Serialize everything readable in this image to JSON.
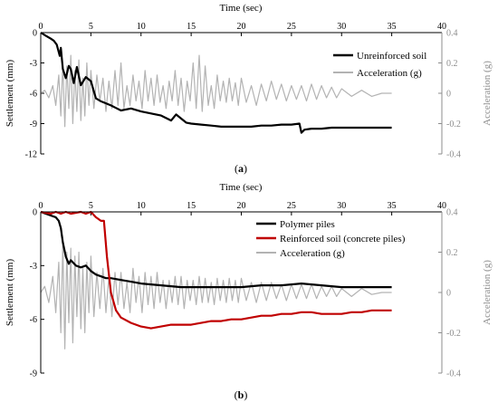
{
  "chart_data": [
    {
      "type": "line",
      "caption_open": "(",
      "caption_letter": "a",
      "caption_close": ")",
      "xlabel": "Time (sec)",
      "ylabel": "Settlement (mm)",
      "y2label": "Acceleration (g)",
      "xlim": [
        0,
        40
      ],
      "ylim": [
        -12,
        0
      ],
      "y2lim": [
        -0.4,
        0.4
      ],
      "xticks": [
        "0",
        "5",
        "10",
        "15",
        "20",
        "25",
        "30",
        "35",
        "40"
      ],
      "yticks": [
        "0",
        "-3",
        "-6",
        "-9",
        "-12"
      ],
      "y2ticks": [
        "0.4",
        "0.2",
        "0",
        "-0.2",
        "-0.4"
      ],
      "legend_position": "top-right",
      "series": [
        {
          "name": "Unreinforced soil",
          "axis": "left",
          "color": "#000000",
          "x": [
            0,
            0.5,
            1,
            1.3,
            1.6,
            1.9,
            2.0,
            2.2,
            2.5,
            2.8,
            3.0,
            3.3,
            3.6,
            4,
            4.5,
            5,
            5.5,
            6,
            7,
            8,
            9,
            10,
            11,
            12,
            13,
            13.5,
            14,
            14.5,
            15,
            16,
            17,
            18,
            19,
            20,
            21,
            22,
            23,
            24,
            25,
            25.8,
            26.0,
            26.3,
            27,
            28,
            29,
            30,
            31,
            32,
            33,
            34,
            35
          ],
          "y": [
            0,
            -0.3,
            -0.6,
            -0.8,
            -1.2,
            -2.3,
            -1.5,
            -3.6,
            -4.5,
            -3.3,
            -3.6,
            -5.0,
            -3.4,
            -5.2,
            -4.4,
            -4.8,
            -6.5,
            -6.8,
            -7.2,
            -7.7,
            -7.5,
            -7.8,
            -8.0,
            -8.2,
            -8.7,
            -8.1,
            -8.5,
            -8.9,
            -9.0,
            -9.1,
            -9.2,
            -9.3,
            -9.3,
            -9.3,
            -9.3,
            -9.2,
            -9.2,
            -9.1,
            -9.1,
            -9.0,
            -9.9,
            -9.6,
            -9.5,
            -9.5,
            -9.4,
            -9.4,
            -9.4,
            -9.4,
            -9.4,
            -9.4,
            -9.4
          ]
        },
        {
          "name": "Acceleration (g)",
          "axis": "right",
          "color": "#b3b3b3",
          "x": [
            0,
            0.4,
            0.8,
            1.2,
            1.5,
            1.8,
            2.0,
            2.2,
            2.4,
            2.6,
            2.8,
            3.0,
            3.2,
            3.4,
            3.6,
            3.8,
            4.0,
            4.2,
            4.4,
            4.6,
            4.8,
            5.0,
            5.3,
            5.6,
            5.9,
            6.2,
            6.5,
            6.8,
            7.1,
            7.4,
            7.7,
            8.0,
            8.3,
            8.6,
            8.9,
            9.2,
            9.5,
            9.8,
            10.1,
            10.4,
            10.7,
            11.0,
            11.3,
            11.6,
            11.9,
            12.2,
            12.5,
            12.8,
            13.1,
            13.4,
            13.7,
            14.0,
            14.3,
            14.6,
            14.9,
            15.2,
            15.5,
            15.8,
            16.1,
            16.4,
            16.7,
            17.0,
            17.3,
            17.6,
            17.9,
            18.2,
            18.5,
            18.8,
            19.1,
            19.4,
            19.7,
            20.0,
            20.5,
            21.0,
            21.5,
            22.0,
            22.5,
            23.0,
            23.5,
            24.0,
            24.5,
            25.0,
            25.5,
            26.0,
            26.5,
            27.0,
            27.5,
            28.0,
            28.5,
            29.0,
            29.5,
            30.0,
            31.0,
            32.0,
            33.0,
            34.0,
            35.0
          ],
          "y": [
            0.0,
            0.02,
            -0.03,
            0.05,
            -0.08,
            0.12,
            -0.15,
            0.2,
            -0.22,
            0.18,
            -0.1,
            0.25,
            -0.2,
            0.15,
            -0.12,
            0.22,
            -0.18,
            0.1,
            -0.15,
            0.2,
            -0.08,
            0.15,
            -0.1,
            0.12,
            -0.05,
            0.1,
            -0.12,
            0.08,
            -0.1,
            0.15,
            -0.08,
            0.2,
            -0.1,
            0.05,
            -0.08,
            0.12,
            -0.05,
            0.08,
            -0.1,
            0.15,
            -0.05,
            0.1,
            -0.08,
            0.12,
            -0.06,
            0.05,
            -0.1,
            0.08,
            -0.05,
            0.15,
            -0.08,
            0.1,
            -0.12,
            0.08,
            -0.05,
            0.2,
            -0.1,
            0.25,
            -0.12,
            0.18,
            -0.08,
            0.05,
            -0.1,
            0.12,
            -0.05,
            0.08,
            -0.06,
            0.1,
            -0.05,
            0.07,
            -0.08,
            0.1,
            -0.06,
            0.05,
            -0.08,
            0.06,
            -0.05,
            0.08,
            -0.04,
            0.06,
            -0.05,
            0.05,
            -0.04,
            0.05,
            -0.05,
            0.06,
            -0.04,
            0.05,
            -0.03,
            0.04,
            -0.03,
            0.03,
            -0.02,
            0.02,
            -0.02,
            0.0,
            0.0
          ]
        }
      ]
    },
    {
      "type": "line",
      "caption_open": "(",
      "caption_letter": "b",
      "caption_close": ")",
      "xlabel": "Time (sec)",
      "ylabel": "Settlement (mm)",
      "y2label": "Acceleration (g)",
      "xlim": [
        0,
        40
      ],
      "ylim": [
        -9,
        0
      ],
      "y2lim": [
        -0.4,
        0.4
      ],
      "xticks": [
        "0",
        "5",
        "10",
        "15",
        "20",
        "25",
        "30",
        "35",
        "40"
      ],
      "yticks": [
        "0",
        "-3",
        "-6",
        "-9"
      ],
      "y2ticks": [
        "0.4",
        "0.2",
        "0",
        "-0.2",
        "-0.4"
      ],
      "legend_position": "top-right",
      "series": [
        {
          "name": "Polymer piles",
          "axis": "left",
          "color": "#000000",
          "x": [
            0,
            0.5,
            1.0,
            1.5,
            1.8,
            2.0,
            2.2,
            2.5,
            2.8,
            3.0,
            3.5,
            4.0,
            4.5,
            5.0,
            5.5,
            6.0,
            6.5,
            7.0,
            8.0,
            9.0,
            10,
            12,
            14,
            16,
            18,
            20,
            22,
            24,
            26,
            28,
            30,
            32,
            34,
            35
          ],
          "y": [
            0,
            -0.1,
            -0.2,
            -0.3,
            -0.5,
            -0.9,
            -1.7,
            -2.5,
            -2.9,
            -2.7,
            -3.0,
            -3.1,
            -3.0,
            -3.3,
            -3.5,
            -3.6,
            -3.7,
            -3.7,
            -3.8,
            -3.9,
            -4.0,
            -4.1,
            -4.2,
            -4.2,
            -4.2,
            -4.2,
            -4.1,
            -4.1,
            -4.0,
            -4.1,
            -4.2,
            -4.2,
            -4.2,
            -4.2
          ]
        },
        {
          "name": "Reinforced soil (concrete piles)",
          "axis": "left",
          "color": "#c00000",
          "x": [
            0,
            0.5,
            1.0,
            1.5,
            2.0,
            2.5,
            3.0,
            3.5,
            4.0,
            4.5,
            5.0,
            5.5,
            6.0,
            6.3,
            6.6,
            7.0,
            7.5,
            8.0,
            9.0,
            10,
            11,
            12,
            13,
            14,
            15,
            16,
            17,
            18,
            19,
            20,
            21,
            22,
            23,
            24,
            25,
            26,
            27,
            28,
            29,
            30,
            31,
            32,
            33,
            34,
            35
          ],
          "y": [
            0,
            -0.05,
            -0.1,
            0,
            -0.1,
            0,
            -0.1,
            -0.05,
            0,
            -0.1,
            0,
            -0.3,
            -0.5,
            -0.5,
            -2.5,
            -4.5,
            -5.5,
            -5.9,
            -6.2,
            -6.4,
            -6.5,
            -6.4,
            -6.3,
            -6.3,
            -6.3,
            -6.2,
            -6.1,
            -6.1,
            -6.0,
            -6.0,
            -5.9,
            -5.8,
            -5.8,
            -5.7,
            -5.7,
            -5.6,
            -5.6,
            -5.7,
            -5.7,
            -5.7,
            -5.6,
            -5.6,
            -5.5,
            -5.5,
            -5.5
          ]
        },
        {
          "name": "Acceleration (g)",
          "axis": "right",
          "color": "#b3b3b3",
          "x": [
            0,
            0.4,
            0.8,
            1.2,
            1.5,
            1.8,
            2.0,
            2.2,
            2.4,
            2.6,
            2.8,
            3.0,
            3.2,
            3.4,
            3.6,
            3.8,
            4.0,
            4.2,
            4.4,
            4.6,
            4.8,
            5.0,
            5.3,
            5.6,
            5.9,
            6.2,
            6.5,
            6.8,
            7.1,
            7.4,
            7.7,
            8.0,
            8.3,
            8.6,
            8.9,
            9.2,
            9.5,
            9.8,
            10.1,
            10.4,
            10.7,
            11.0,
            11.3,
            11.6,
            11.9,
            12.2,
            12.5,
            12.8,
            13.1,
            13.4,
            13.7,
            14.0,
            14.3,
            14.6,
            14.9,
            15.2,
            15.5,
            15.8,
            16.1,
            16.4,
            16.7,
            17.0,
            17.3,
            17.6,
            17.9,
            18.2,
            18.5,
            18.8,
            19.1,
            19.4,
            19.7,
            20.0,
            20.5,
            21.0,
            21.5,
            22.0,
            22.5,
            23.0,
            23.5,
            24.0,
            24.5,
            25.0,
            25.5,
            26.0,
            26.5,
            27.0,
            27.5,
            28.0,
            28.5,
            29.0,
            29.5,
            30.0,
            31.0,
            32.0,
            33.0,
            34.0,
            35.0
          ],
          "y": [
            0.0,
            0.03,
            -0.05,
            0.08,
            -0.1,
            0.15,
            -0.2,
            0.25,
            -0.28,
            0.2,
            -0.15,
            0.22,
            -0.25,
            0.18,
            -0.12,
            0.2,
            -0.18,
            0.12,
            -0.2,
            0.15,
            -0.1,
            0.18,
            -0.12,
            0.1,
            -0.08,
            0.12,
            -0.1,
            0.08,
            -0.12,
            0.1,
            -0.06,
            0.1,
            -0.08,
            0.05,
            -0.1,
            0.12,
            -0.05,
            0.08,
            -0.1,
            0.1,
            -0.06,
            0.08,
            -0.08,
            0.1,
            -0.05,
            0.06,
            -0.08,
            0.06,
            -0.05,
            0.08,
            -0.06,
            0.08,
            -0.08,
            0.06,
            -0.04,
            0.06,
            -0.06,
            0.08,
            -0.05,
            0.07,
            -0.05,
            0.05,
            -0.06,
            0.07,
            -0.04,
            0.06,
            -0.05,
            0.07,
            -0.04,
            0.06,
            -0.05,
            0.07,
            -0.04,
            0.05,
            -0.05,
            0.05,
            -0.04,
            0.05,
            -0.03,
            0.04,
            -0.04,
            0.04,
            -0.03,
            0.04,
            -0.03,
            0.04,
            -0.03,
            0.03,
            -0.02,
            0.03,
            -0.02,
            0.02,
            -0.02,
            0.02,
            -0.01,
            0.0,
            0.0
          ]
        }
      ]
    }
  ]
}
